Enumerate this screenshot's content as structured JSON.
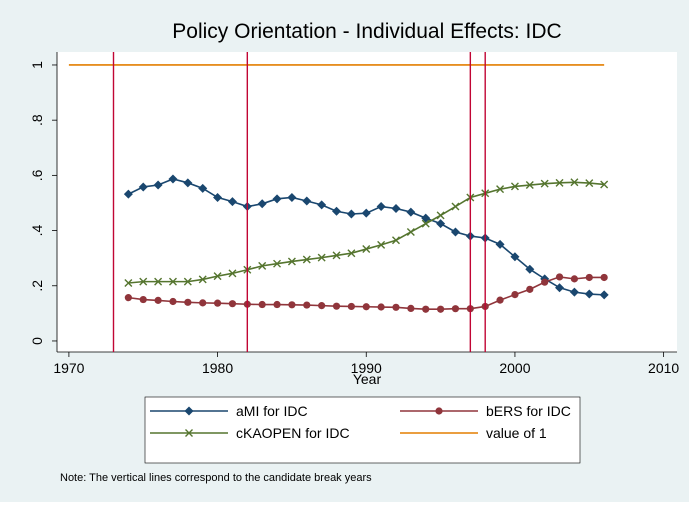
{
  "chart_data": {
    "type": "line",
    "title": "Policy Orientation - Individual Effects: IDC",
    "x_label": "Year",
    "note": "Note: The vertical lines correspond to the candidate break years",
    "xlim": [
      1969.2,
      2010.9
    ],
    "xticks": [
      1970,
      1980,
      1990,
      2000,
      2010
    ],
    "ylim": [
      -0.04,
      1.047
    ],
    "yticks": [
      {
        "value": 0,
        "label": "0"
      },
      {
        "value": 0.2,
        "label": ".2"
      },
      {
        "value": 0.4,
        "label": ".4"
      },
      {
        "value": 0.6,
        "label": ".6"
      },
      {
        "value": 0.8,
        "label": ".8"
      },
      {
        "value": 1,
        "label": "1"
      }
    ],
    "vlines": [
      1973,
      1982,
      1997,
      1998
    ],
    "vline_color": "#c10534",
    "series": [
      {
        "name": "aMI for IDC",
        "color": "#1a476f",
        "marker": "diamond",
        "x": [
          1974,
          1975,
          1976,
          1977,
          1978,
          1979,
          1980,
          1981,
          1982,
          1983,
          1984,
          1985,
          1986,
          1987,
          1988,
          1989,
          1990,
          1991,
          1992,
          1993,
          1994,
          1995,
          1996,
          1997,
          1998,
          1999,
          2000,
          2001,
          2002,
          2003,
          2004,
          2005,
          2006
        ],
        "values": [
          0.532,
          0.558,
          0.565,
          0.587,
          0.573,
          0.553,
          0.52,
          0.505,
          0.487,
          0.497,
          0.515,
          0.52,
          0.507,
          0.493,
          0.47,
          0.46,
          0.463,
          0.487,
          0.48,
          0.467,
          0.445,
          0.425,
          0.395,
          0.38,
          0.373,
          0.35,
          0.305,
          0.26,
          0.225,
          0.193,
          0.177,
          0.17,
          0.167
        ]
      },
      {
        "name": "bERS for IDC",
        "color": "#90353b",
        "marker": "circle",
        "x": [
          1974,
          1975,
          1976,
          1977,
          1978,
          1979,
          1980,
          1981,
          1982,
          1983,
          1984,
          1985,
          1986,
          1987,
          1988,
          1989,
          1990,
          1991,
          1992,
          1993,
          1994,
          1995,
          1996,
          1997,
          1998,
          1999,
          2000,
          2001,
          2002,
          2003,
          2004,
          2005,
          2006
        ],
        "values": [
          0.157,
          0.15,
          0.147,
          0.143,
          0.14,
          0.138,
          0.137,
          0.135,
          0.133,
          0.132,
          0.132,
          0.131,
          0.13,
          0.128,
          0.126,
          0.125,
          0.124,
          0.123,
          0.122,
          0.118,
          0.115,
          0.115,
          0.117,
          0.117,
          0.125,
          0.148,
          0.168,
          0.187,
          0.213,
          0.232,
          0.225,
          0.23,
          0.23
        ]
      },
      {
        "name": "cKAOPEN for IDC",
        "color": "#55752f",
        "marker": "x",
        "x": [
          1974,
          1975,
          1976,
          1977,
          1978,
          1979,
          1980,
          1981,
          1982,
          1983,
          1984,
          1985,
          1986,
          1987,
          1988,
          1989,
          1990,
          1991,
          1992,
          1993,
          1994,
          1995,
          1996,
          1997,
          1998,
          1999,
          2000,
          2001,
          2002,
          2003,
          2004,
          2005,
          2006
        ],
        "values": [
          0.21,
          0.215,
          0.215,
          0.215,
          0.215,
          0.223,
          0.235,
          0.245,
          0.258,
          0.272,
          0.28,
          0.288,
          0.295,
          0.302,
          0.31,
          0.318,
          0.333,
          0.348,
          0.365,
          0.395,
          0.425,
          0.455,
          0.487,
          0.52,
          0.535,
          0.55,
          0.56,
          0.565,
          0.57,
          0.573,
          0.575,
          0.572,
          0.567
        ]
      },
      {
        "name": "value of 1",
        "color": "#e37e00",
        "marker": "none",
        "x": [
          1970,
          2006
        ],
        "values": [
          1,
          1
        ]
      }
    ]
  }
}
